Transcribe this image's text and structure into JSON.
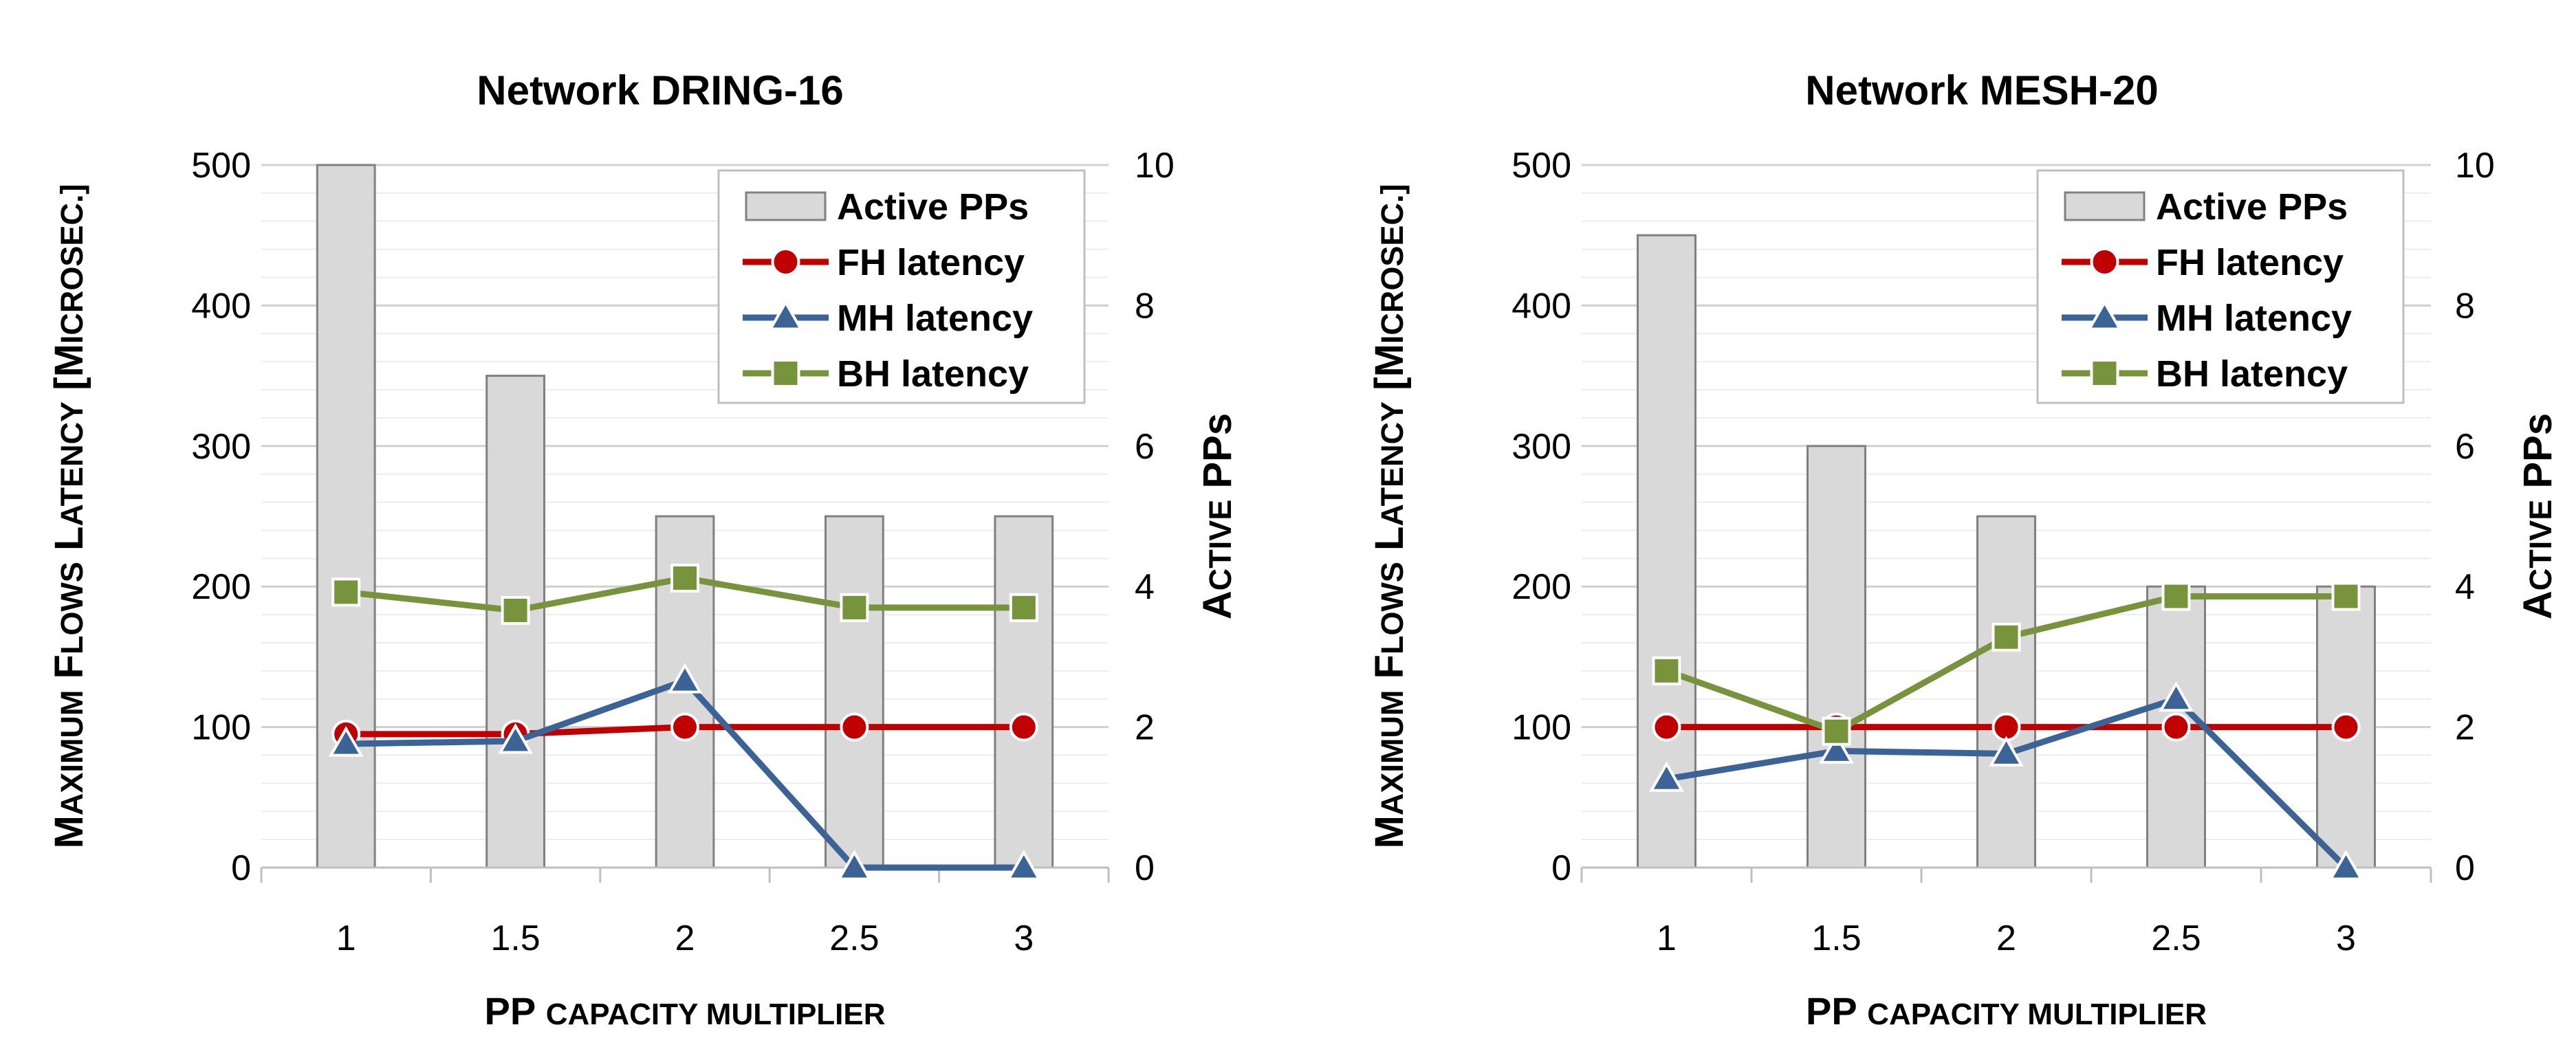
{
  "chart_data": [
    {
      "type": "bar+line",
      "title": "Network DRING-16",
      "categories": [
        "1",
        "1.5",
        "2",
        "2.5",
        "3"
      ],
      "xlabel": {
        "main": "PP",
        "small": "capacity multiplier"
      },
      "ylabel": {
        "parts": [
          "Maximum",
          "Flows",
          "Latency",
          "[microsec.]"
        ]
      },
      "y2label": {
        "parts": [
          "Active",
          "PPs"
        ]
      },
      "ylim": [
        0,
        500
      ],
      "y2lim": [
        0,
        10
      ],
      "yticks": [
        "0",
        "100",
        "200",
        "300",
        "400",
        "500"
      ],
      "y2ticks": [
        "0",
        "2",
        "4",
        "6",
        "8",
        "10"
      ],
      "bars": {
        "name": "Active PPs",
        "axis": "secondary",
        "values": [
          10,
          7,
          5,
          5,
          5
        ]
      },
      "series": [
        {
          "name": "FH latency",
          "marker": "circle",
          "color": "#C00000",
          "values": [
            95,
            95,
            100,
            100,
            100
          ]
        },
        {
          "name": "MH latency",
          "marker": "triangle",
          "color": "#3B6396",
          "values": [
            88,
            90,
            133,
            0,
            0
          ]
        },
        {
          "name": "BH latency",
          "marker": "square",
          "color": "#77933C",
          "values": [
            196,
            183,
            206,
            185,
            185
          ]
        }
      ],
      "legend": [
        "Active PPs",
        "FH latency",
        "MH latency",
        "BH latency"
      ]
    },
    {
      "type": "bar+line",
      "title": "Network MESH-20",
      "categories": [
        "1",
        "1.5",
        "2",
        "2.5",
        "3"
      ],
      "xlabel": {
        "main": "PP",
        "small": "capacity multiplier"
      },
      "ylabel": {
        "parts": [
          "Maximum",
          "Flows",
          "Latency",
          "[microsec.]"
        ]
      },
      "y2label": {
        "parts": [
          "Active",
          "PPs"
        ]
      },
      "ylim": [
        0,
        500
      ],
      "y2lim": [
        0,
        10
      ],
      "yticks": [
        "0",
        "100",
        "200",
        "300",
        "400",
        "500"
      ],
      "y2ticks": [
        "0",
        "2",
        "4",
        "6",
        "8",
        "10"
      ],
      "bars": {
        "name": "Active PPs",
        "axis": "secondary",
        "values": [
          9,
          6,
          5,
          4,
          4
        ]
      },
      "series": [
        {
          "name": "FH latency",
          "marker": "circle",
          "color": "#C00000",
          "values": [
            100,
            100,
            100,
            100,
            100
          ]
        },
        {
          "name": "MH latency",
          "marker": "triangle",
          "color": "#3B6396",
          "values": [
            63,
            83,
            81,
            120,
            0
          ]
        },
        {
          "name": "BH latency",
          "marker": "square",
          "color": "#77933C",
          "values": [
            140,
            97,
            164,
            193,
            193
          ]
        }
      ],
      "legend": [
        "Active PPs",
        "FH latency",
        "MH latency",
        "BH latency"
      ]
    }
  ]
}
